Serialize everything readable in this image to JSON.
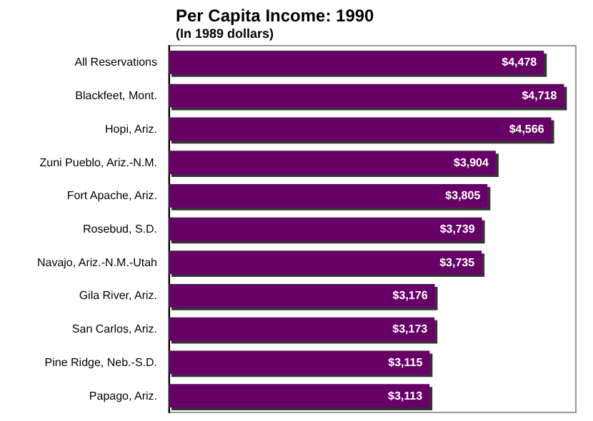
{
  "chart_data": {
    "type": "bar",
    "orientation": "horizontal",
    "title": "Per Capita Income: 1990",
    "subtitle": "(In 1989 dollars)",
    "categories": [
      "All Reservations",
      "Blackfeet, Mont.",
      "Hopi, Ariz.",
      "Zuni Pueblo, Ariz.-N.M.",
      "Fort Apache, Ariz.",
      "Rosebud, S.D.",
      "Navajo, Ariz.-N.M.-Utah",
      "Gila River, Ariz.",
      "San Carlos, Ariz.",
      "Pine Ridge, Neb.-S.D.",
      "Papago, Ariz."
    ],
    "values": [
      4478,
      4718,
      4566,
      3904,
      3805,
      3739,
      3735,
      3176,
      3173,
      3115,
      3113
    ],
    "value_labels": [
      "$4,478",
      "$4,718",
      "$4,566",
      "$3,904",
      "$3,805",
      "$3,739",
      "$3,735",
      "$3,176",
      "$3,173",
      "$3,115",
      "$3,113"
    ],
    "color": "#660066"
  }
}
